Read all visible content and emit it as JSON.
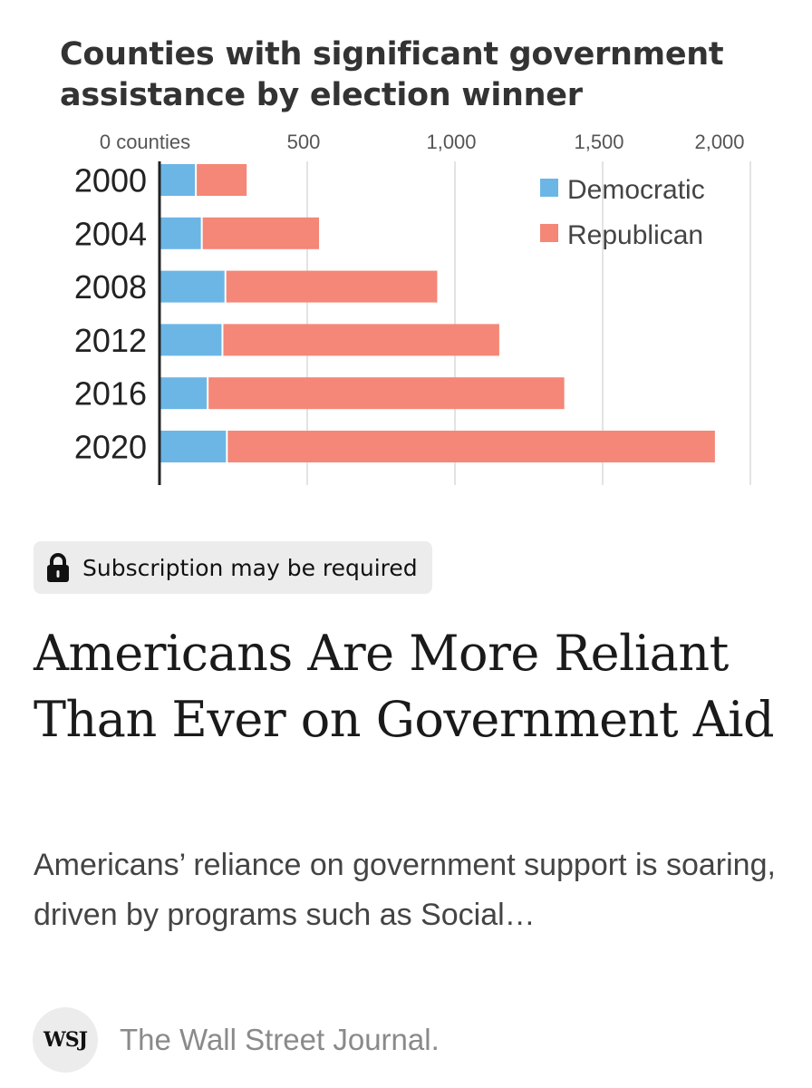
{
  "chart_data": {
    "type": "bar",
    "stacked": true,
    "orientation": "horizontal",
    "title": "Counties with significant government assistance by election winner",
    "categories": [
      "2000",
      "2004",
      "2008",
      "2012",
      "2016",
      "2020"
    ],
    "series": [
      {
        "name": "Democratic",
        "color": "#6cb6e6",
        "values": [
          120,
          140,
          220,
          210,
          160,
          225
        ]
      },
      {
        "name": "Republican",
        "color": "#f48777",
        "values": [
          175,
          400,
          720,
          940,
          1210,
          1655
        ]
      }
    ],
    "x_ticks": [
      {
        "value": 0,
        "label": "0 counties"
      },
      {
        "value": 500,
        "label": "500"
      },
      {
        "value": 1000,
        "label": "1,000"
      },
      {
        "value": 1500,
        "label": "1,500"
      },
      {
        "value": 2000,
        "label": "2,000"
      }
    ],
    "xlim": [
      0,
      2000
    ],
    "grid": true,
    "legend_position": "top-right"
  },
  "article": {
    "badge_text": "Subscription may be required",
    "headline": "Americans Are More Reliant Than Ever on Government Aid",
    "description": "Americans’ reliance on government support is soaring, driven by programs such as Social…"
  },
  "source": {
    "logo_text": "WSJ",
    "name": "The Wall Street Journal."
  }
}
